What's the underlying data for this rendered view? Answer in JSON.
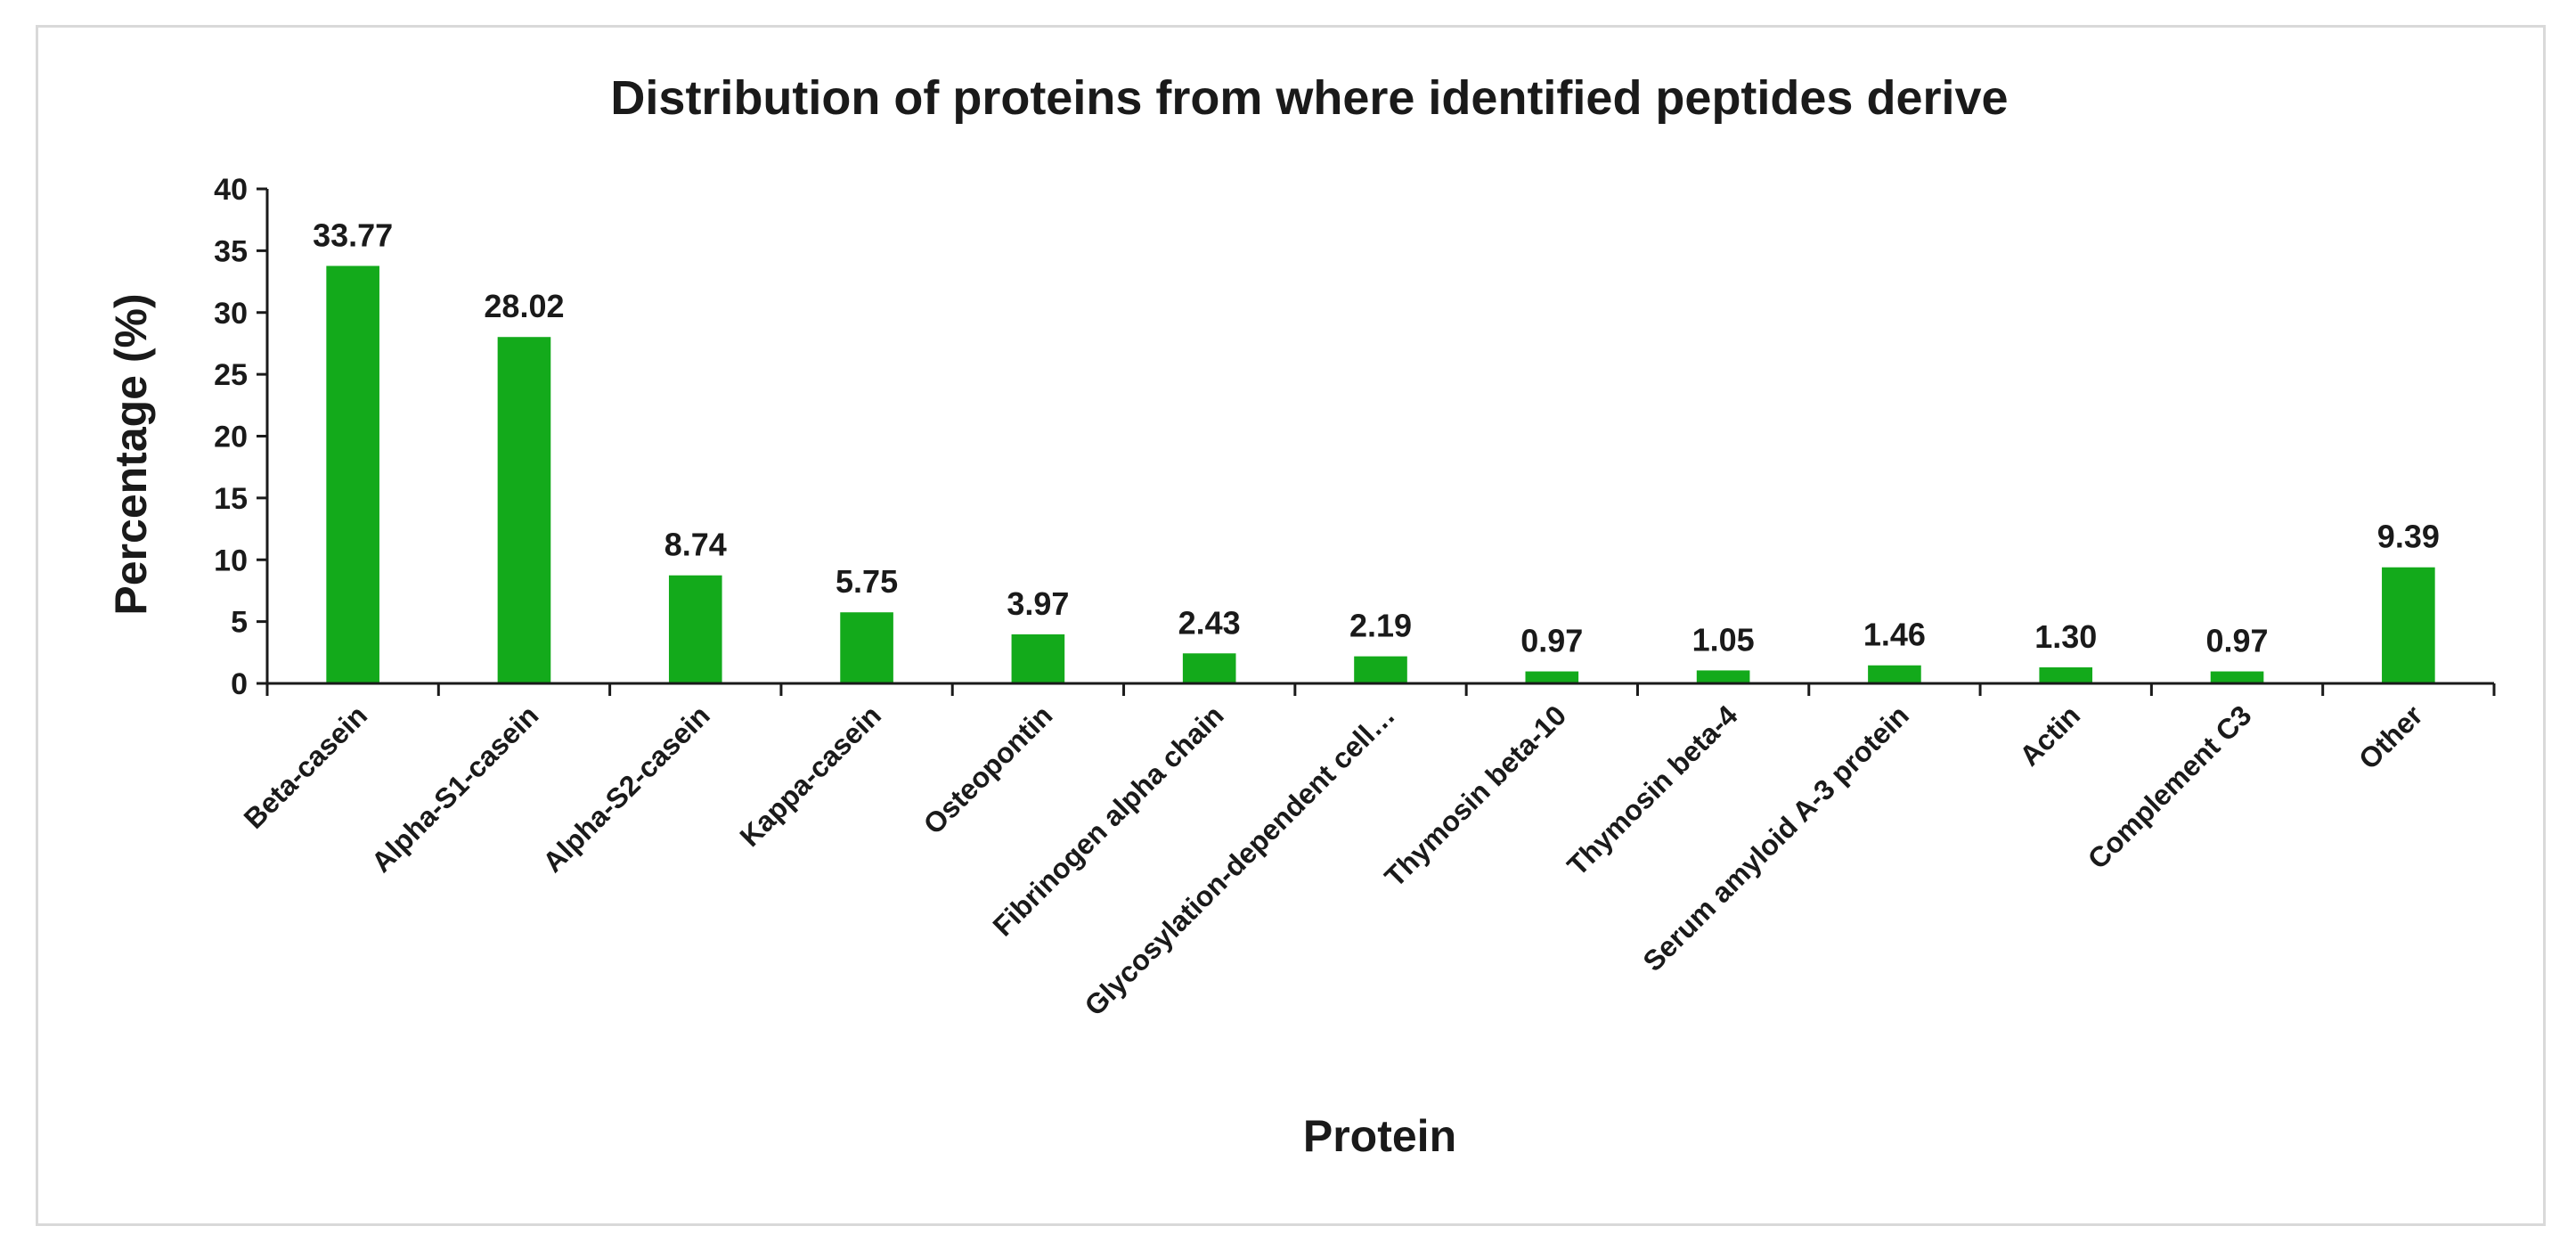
{
  "chart_data": {
    "type": "bar",
    "title": "Distribution of proteins from where identified peptides derive",
    "xlabel": "Protein",
    "ylabel": "Percentage (%)",
    "ylim": [
      0,
      40
    ],
    "yticks": [
      0,
      5,
      10,
      15,
      20,
      25,
      30,
      35,
      40
    ],
    "grid": false,
    "legend": "none",
    "categories": [
      "Beta-casein",
      "Alpha-S1-casein",
      "Alpha-S2-casein",
      "Kappa-casein",
      "Osteopontin",
      "Fibrinogen alpha chain",
      "Glycosylation-dependent cell…",
      "Thymosin beta-10",
      "Thymosin beta-4",
      "Serum amyloid A-3 protein",
      "Actin",
      "Complement C3",
      "Other"
    ],
    "values": [
      33.77,
      28.02,
      8.74,
      5.75,
      3.97,
      2.43,
      2.19,
      0.97,
      1.05,
      1.46,
      1.3,
      0.97,
      9.39
    ],
    "data_labels": [
      "33.77",
      "28.02",
      "8.74",
      "5.75",
      "3.97",
      "2.43",
      "2.19",
      "0.97",
      "1.05",
      "1.46",
      "1.30",
      "0.97",
      "9.39"
    ],
    "colors": {
      "bar": "#13aa1b",
      "axis": "#1a1a1a",
      "frame": "#d9d9d9"
    }
  }
}
